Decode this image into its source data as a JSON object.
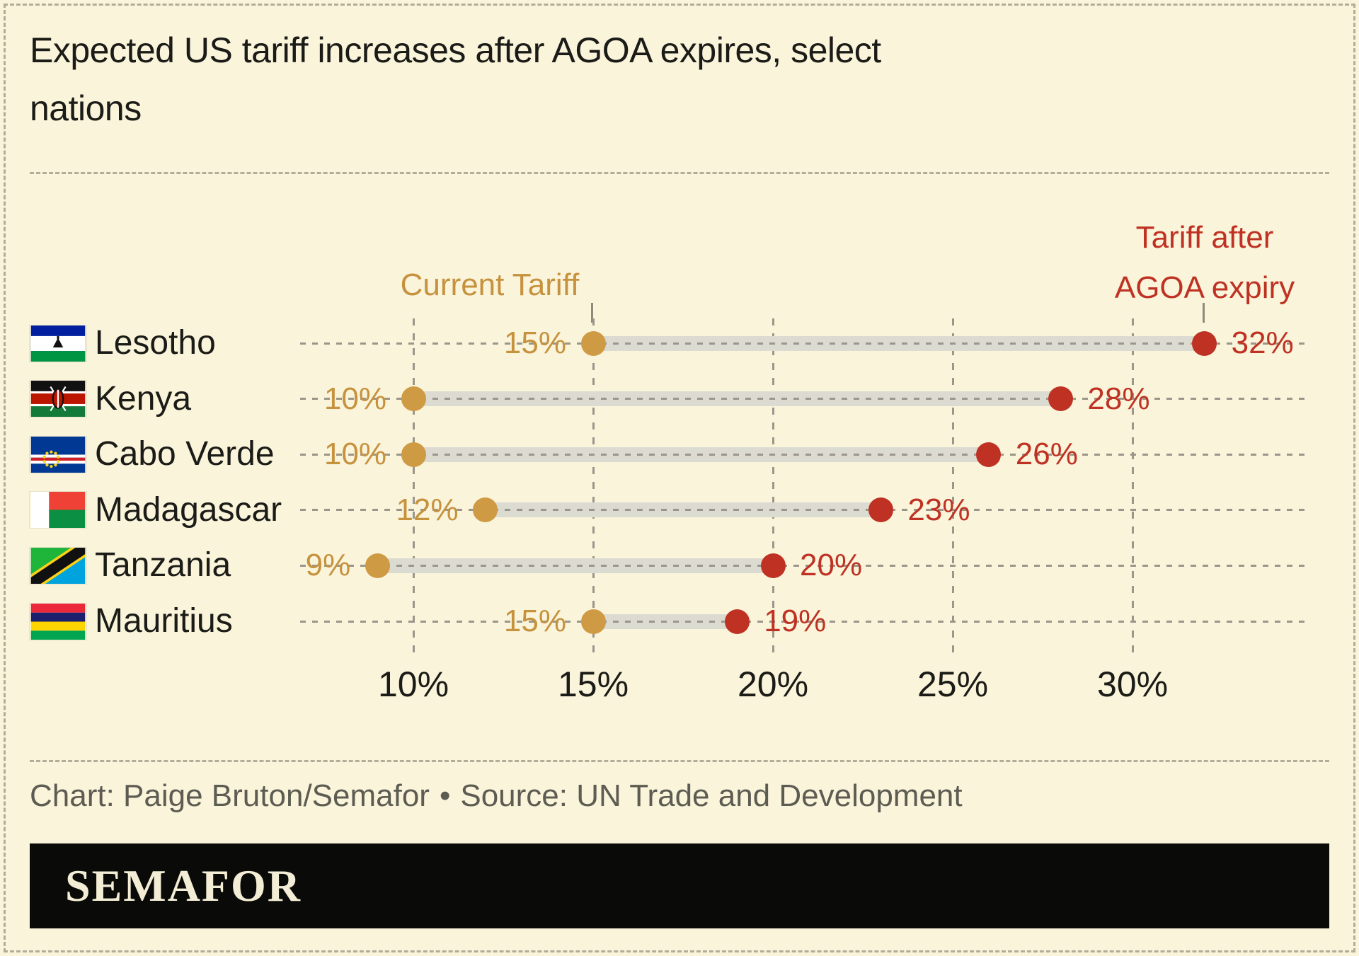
{
  "title": {
    "line1": "Expected US tariff increases after AGOA expires, select",
    "line2": "nations"
  },
  "legend": {
    "current": {
      "label": "Current Tariff",
      "color": "#c6923e"
    },
    "after": {
      "label_line1": "Tariff after",
      "label_line2": "AGOA expiry",
      "color": "#bf3223"
    }
  },
  "chart_data": {
    "type": "dumbbell",
    "title": "Expected US tariff increases after AGOA expires, select nations",
    "categories": [
      "Lesotho",
      "Kenya",
      "Cabo Verde",
      "Madagascar",
      "Tanzania",
      "Mauritius"
    ],
    "flags": [
      "lesotho",
      "kenya",
      "cabo-verde",
      "madagascar",
      "tanzania",
      "mauritius"
    ],
    "series": [
      {
        "name": "Current Tariff",
        "values": [
          15,
          10,
          10,
          12,
          9,
          15
        ],
        "color": "#cf9a44"
      },
      {
        "name": "Tariff after AGOA expiry",
        "values": [
          32,
          28,
          26,
          23,
          20,
          19
        ],
        "color": "#bf3223"
      }
    ],
    "value_suffix": "%",
    "x_ticks": [
      {
        "value": 10,
        "label": "10%"
      },
      {
        "value": 15,
        "label": "15%"
      },
      {
        "value": 20,
        "label": "20%"
      },
      {
        "value": 25,
        "label": "25%"
      },
      {
        "value": 30,
        "label": "30%"
      }
    ],
    "xlim": [
      7,
      35.5
    ],
    "grid": "vertical-dashed",
    "legend_position": "above-endpoints",
    "xlabel": "",
    "ylabel": ""
  },
  "footer": {
    "credit": "Chart: Paige Bruton/Semafor",
    "separator": "•",
    "source": "Source: UN Trade and Development"
  },
  "brand": {
    "wordmark": "SEMAFOR"
  },
  "colors": {
    "background": "#faf4db",
    "gold": "#cf9a44",
    "red": "#bf3223",
    "connector_band": "#dcdbd2",
    "grid": "#9b968a",
    "text": "#1b1b17",
    "muted_text": "#5d5c52",
    "banner_background": "#0a0a08",
    "banner_text": "#f3edd5"
  }
}
